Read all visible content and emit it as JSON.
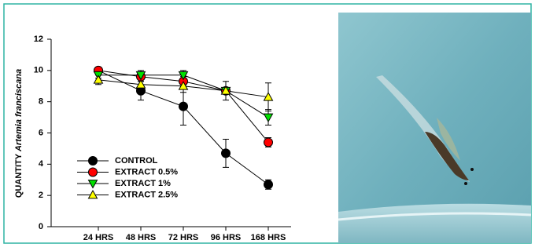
{
  "chart_data": {
    "type": "line",
    "ylabel": [
      "QUANTITY",
      "Artemia franciscana"
    ],
    "categories": [
      "24 HRS",
      "48 HRS",
      "72 HRS",
      "96 HRS",
      "168 HRS"
    ],
    "ylim": [
      0,
      12
    ],
    "yticks": [
      0,
      2,
      4,
      6,
      8,
      10,
      12
    ],
    "legend": "lower left",
    "series": [
      {
        "name": "CONTROL",
        "color": "#000000",
        "marker": "circle",
        "values": [
          10.0,
          8.7,
          7.7,
          4.7,
          2.7
        ],
        "errors": [
          0.15,
          0.6,
          1.2,
          0.9,
          0.3
        ]
      },
      {
        "name": "EXTRACT 0.5%",
        "color": "#ff0000",
        "marker": "circle",
        "values": [
          10.0,
          9.6,
          9.3,
          8.7,
          5.4
        ],
        "errors": [
          0.1,
          0.3,
          0.3,
          0.2,
          0.3
        ]
      },
      {
        "name": "EXTRACT 1%",
        "color": "#00e000",
        "marker": "triangle-down",
        "values": [
          9.7,
          9.7,
          9.7,
          8.7,
          7.0
        ],
        "errors": [
          0.2,
          0.3,
          0.3,
          0.2,
          0.5
        ]
      },
      {
        "name": "EXTRACT 2.5%",
        "color": "#ffff00",
        "marker": "triangle-up",
        "values": [
          9.4,
          9.1,
          9.0,
          8.7,
          8.3
        ],
        "errors": [
          0.3,
          0.3,
          0.4,
          0.6,
          0.9
        ]
      }
    ]
  }
}
